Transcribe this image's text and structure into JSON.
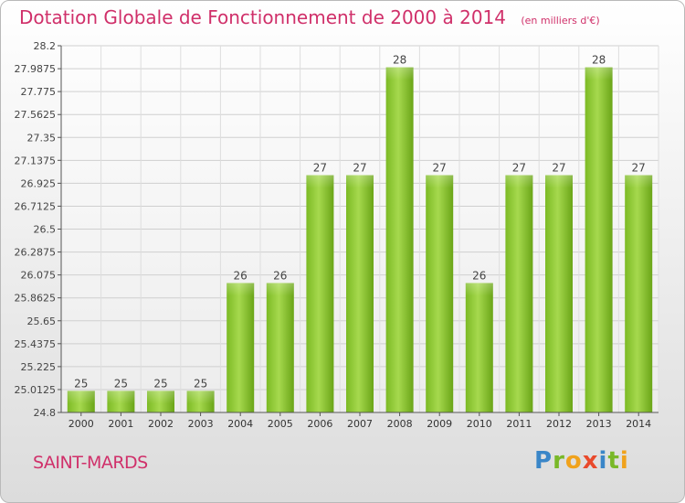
{
  "header": {
    "title": "Dotation Globale de Fonctionnement de 2000 à 2014",
    "subtitle": "(en milliers d'€)"
  },
  "footer": {
    "commune": "SAINT-MARDS",
    "logo_text": "Proxiti"
  },
  "colors": {
    "title": "#d0306a",
    "bar_light": "#a6d94e",
    "bar_dark": "#6aa517",
    "axis": "#444444"
  },
  "chart_data": {
    "type": "bar",
    "categories": [
      "2000",
      "2001",
      "2002",
      "2003",
      "2004",
      "2005",
      "2006",
      "2007",
      "2008",
      "2009",
      "2010",
      "2011",
      "2012",
      "2013",
      "2014"
    ],
    "values": [
      25,
      25,
      25,
      25,
      26,
      26,
      27,
      27,
      28,
      27,
      26,
      27,
      27,
      28,
      27
    ],
    "data_labels": [
      "25",
      "25",
      "25",
      "25",
      "26",
      "26",
      "27",
      "27",
      "28",
      "27",
      "26",
      "27",
      "27",
      "28",
      "27"
    ],
    "yticks": [
      "28.2",
      "27.9875",
      "27.775",
      "27.5625",
      "27.35",
      "27.1375",
      "26.925",
      "26.7125",
      "26.5",
      "26.2875",
      "26.075",
      "25.8625",
      "25.65",
      "25.4375",
      "25.225",
      "25.0125",
      "24.8"
    ],
    "ylim": [
      24.8,
      28.2
    ],
    "grid": true,
    "title": "Dotation Globale de Fonctionnement de 2000 à 2014",
    "xlabel": "",
    "ylabel": ""
  }
}
